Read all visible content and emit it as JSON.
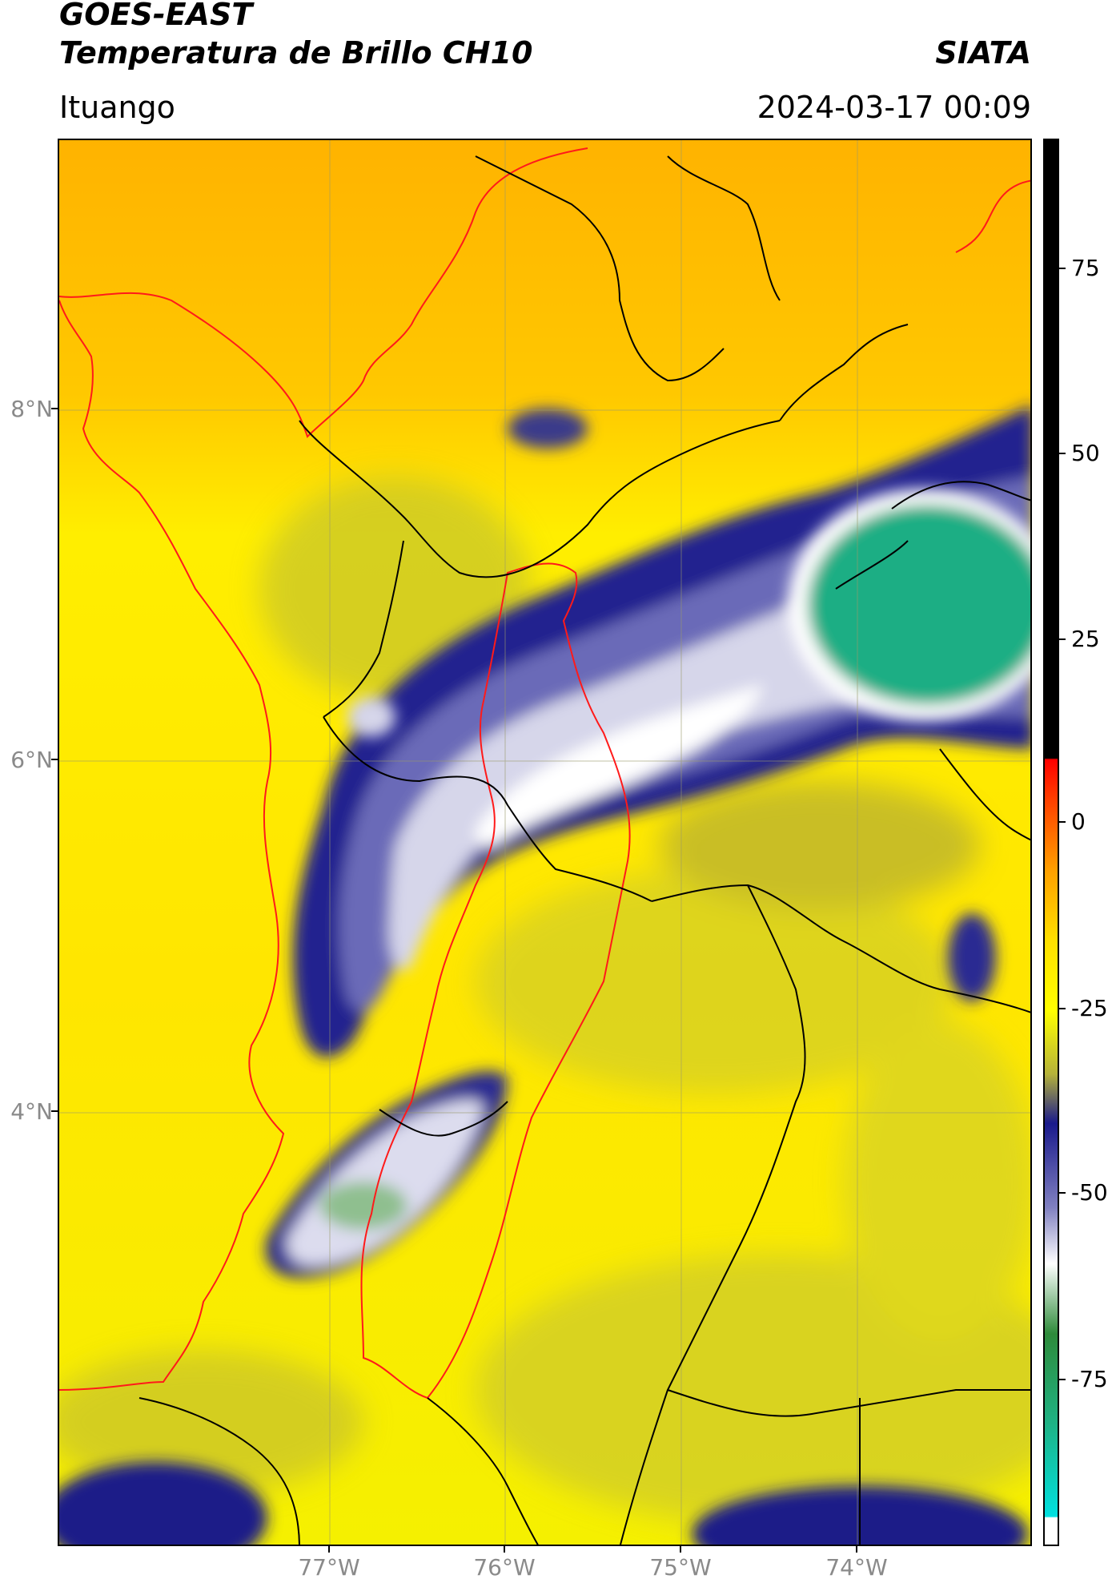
{
  "header": {
    "title_line1": "GOES-EAST",
    "title_line2": "Temperatura de Brillo CH10",
    "brand": "SIATA",
    "location": "Ituango",
    "datetime": "2024-03-17 00:09"
  },
  "map": {
    "lat_labels": [
      "8°N",
      "6°N",
      "4°N"
    ],
    "lon_labels": [
      "77°W",
      "76°W",
      "75°W",
      "74°W"
    ]
  },
  "colorbar": {
    "tick_labels": [
      "75",
      "50",
      "25",
      "0",
      "-25",
      "-50",
      "-75"
    ],
    "colors": {
      "warm": "#ffa000",
      "neutral": "#ffff00",
      "olive": "#d7d42a",
      "cold_blue": "#1a1a8c",
      "white": "#ffffff",
      "green": "#2e8b3a",
      "teal": "#20b080",
      "cyan": "#00e0e0",
      "red": "#ff0000",
      "black": "#000000"
    }
  }
}
